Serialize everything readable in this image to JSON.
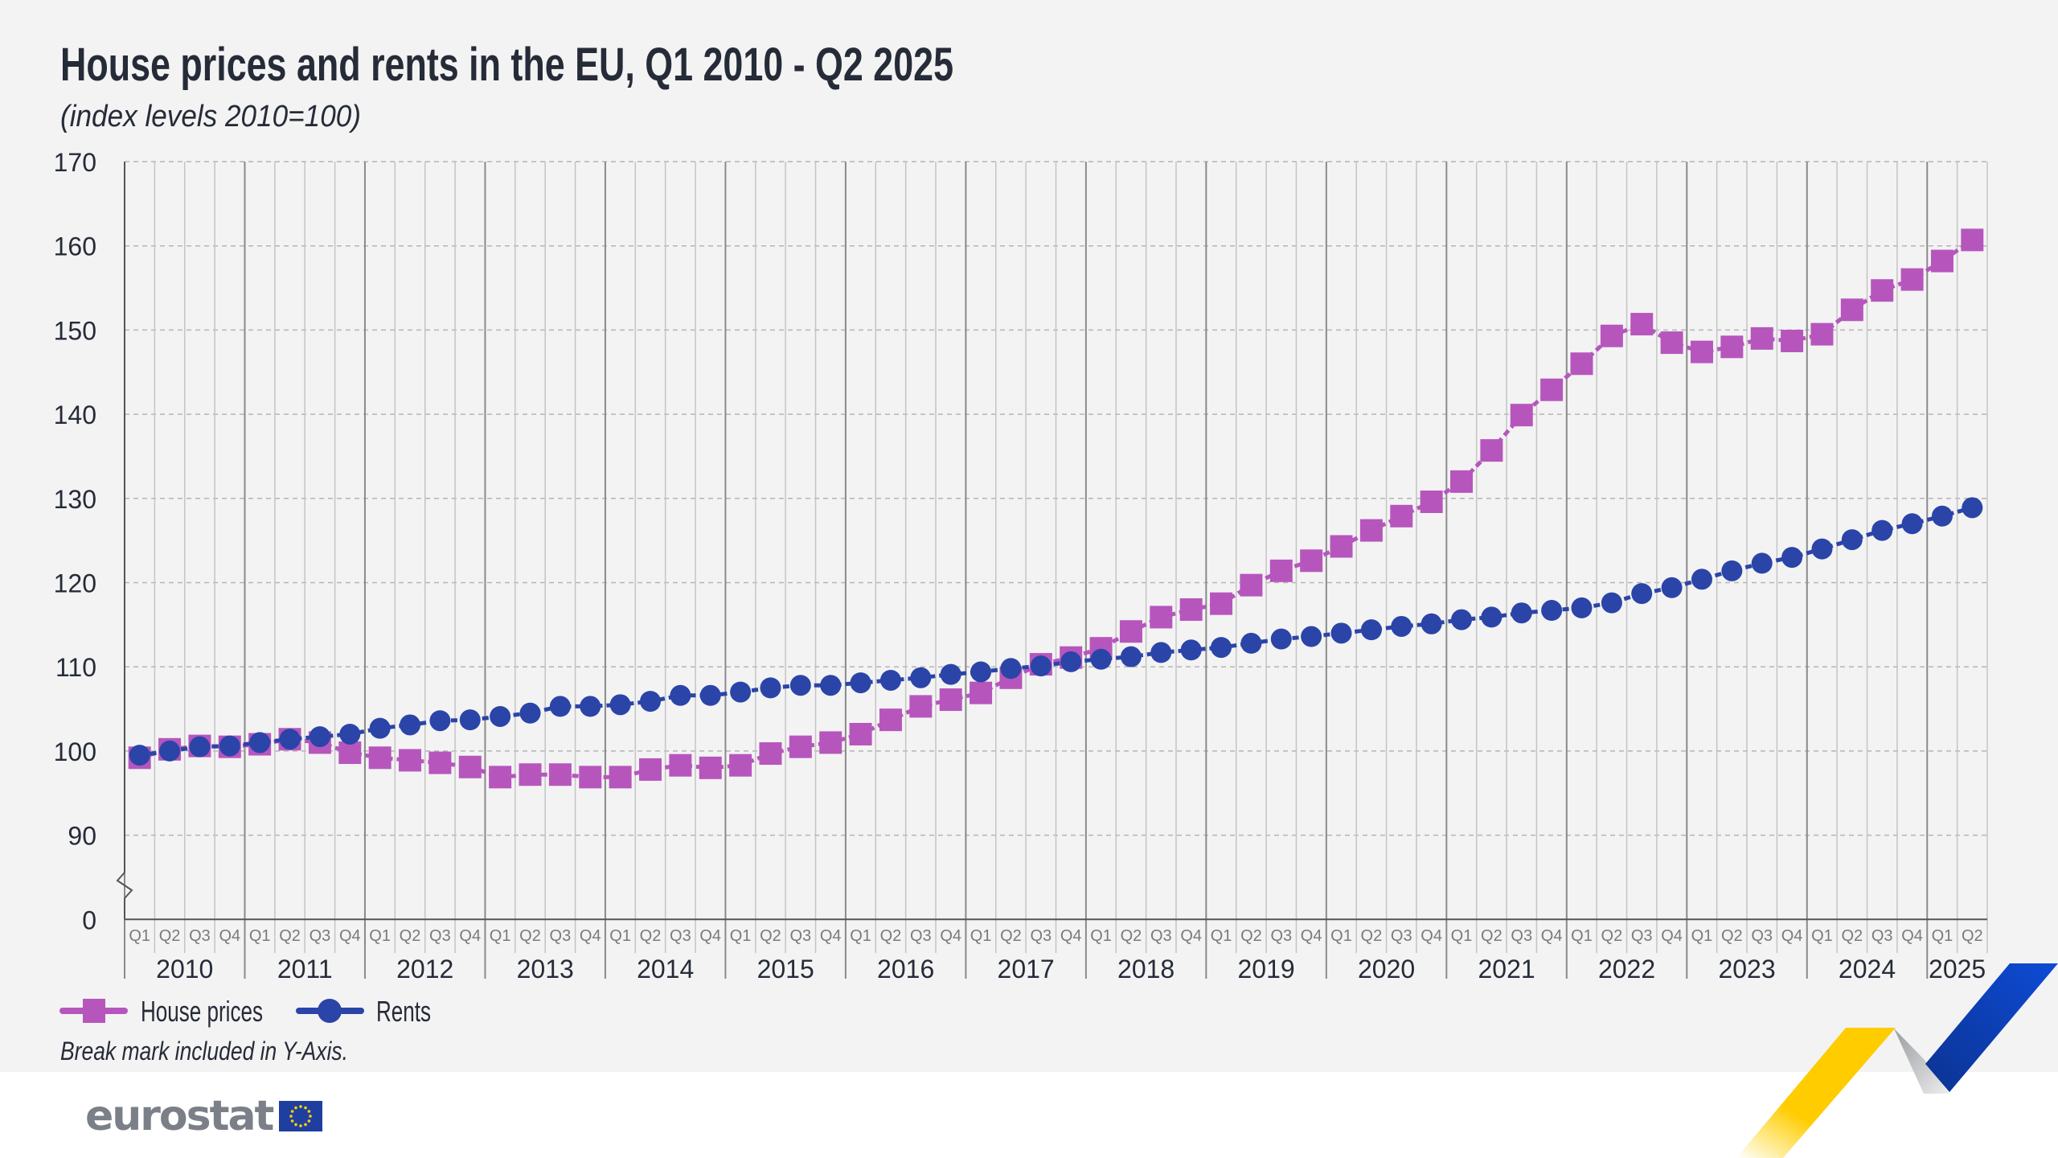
{
  "title": "House prices and rents in the EU, Q1 2010 - Q2 2025",
  "subtitle": "(index levels 2010=100)",
  "footnote": "Break mark included in Y-Axis.",
  "logo_text": "eurostat",
  "colors": {
    "house_prices": "#b656bd",
    "rents": "#2b44a8",
    "title": "#262b38",
    "background": "#f3f3f3"
  },
  "chart_data": {
    "type": "line",
    "title": "House prices and rents in the EU, Q1 2010 - Q2 2025",
    "subtitle": "(index levels 2010=100)",
    "y_ticks": [
      "170",
      "160",
      "150",
      "140",
      "130",
      "120",
      "110",
      "100",
      "90",
      "0"
    ],
    "ylim": [
      90,
      170
    ],
    "y_axis_break": true,
    "grid": true,
    "legend": "bottom-left",
    "years": [
      "2010",
      "2011",
      "2012",
      "2013",
      "2014",
      "2015",
      "2016",
      "2017",
      "2018",
      "2019",
      "2020",
      "2021",
      "2022",
      "2023",
      "2024",
      "2025"
    ],
    "quarters": [
      "Q1",
      "Q2",
      "Q3",
      "Q4"
    ],
    "x_last": "Q2 2025",
    "series": [
      {
        "name": "House prices",
        "marker": "square",
        "values": [
          99.2,
          100.2,
          100.6,
          100.5,
          100.8,
          101.4,
          101.0,
          99.8,
          99.2,
          98.9,
          98.6,
          98.1,
          96.9,
          97.2,
          97.2,
          96.9,
          96.9,
          97.8,
          98.3,
          98.0,
          98.3,
          99.7,
          100.5,
          101.0,
          102.0,
          103.7,
          105.3,
          106.1,
          106.9,
          108.7,
          110.3,
          111.1,
          112.2,
          114.2,
          115.9,
          116.8,
          117.5,
          119.7,
          121.4,
          122.6,
          124.3,
          126.2,
          127.9,
          129.6,
          132.0,
          135.7,
          139.9,
          142.9,
          146.0,
          149.3,
          150.7,
          148.5,
          147.4,
          148.0,
          149.0,
          148.7,
          149.5,
          152.4,
          154.7,
          156.0,
          158.2,
          160.7
        ]
      },
      {
        "name": "Rents",
        "marker": "circle",
        "values": [
          99.5,
          100.0,
          100.5,
          100.6,
          101.0,
          101.4,
          101.7,
          102.0,
          102.7,
          103.1,
          103.6,
          103.7,
          104.1,
          104.5,
          105.3,
          105.3,
          105.5,
          105.9,
          106.6,
          106.6,
          107.0,
          107.5,
          107.8,
          107.8,
          108.1,
          108.4,
          108.7,
          109.1,
          109.4,
          109.8,
          110.1,
          110.6,
          110.9,
          111.2,
          111.7,
          112.0,
          112.3,
          112.8,
          113.3,
          113.6,
          114.0,
          114.4,
          114.8,
          115.1,
          115.6,
          115.9,
          116.4,
          116.7,
          117.0,
          117.6,
          118.7,
          119.4,
          120.4,
          121.4,
          122.3,
          123.0,
          124.0,
          125.1,
          126.2,
          127.0,
          127.9,
          128.9
        ]
      }
    ]
  }
}
